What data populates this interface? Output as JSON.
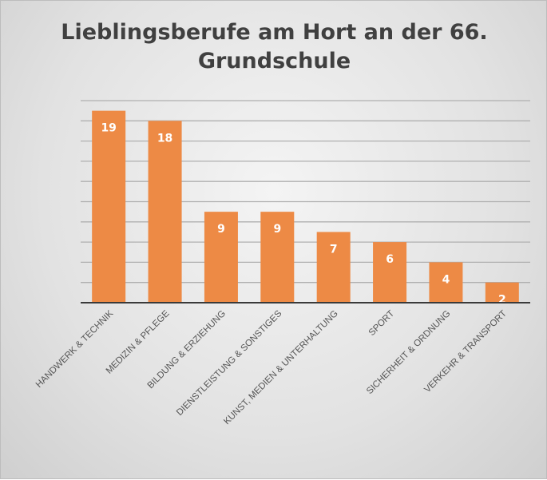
{
  "chart_data": {
    "type": "bar",
    "title_lines": [
      "Lieblingsberufe am Hort an der 66.",
      "Grundschule"
    ],
    "categories": [
      "HANDWERK & TECHNIK",
      "MEDIZIN & PFLEGE",
      "BILDUNG & ERZIEHUNG",
      "DIENSTLEISTUNG & SONSTIGES",
      "KUNST,  MEDIEN & UNTERHALTUNG",
      "SPORT",
      "SICHERHEIT & ORDNUNG",
      "VERKEHR & TRANSPORT"
    ],
    "values": [
      19,
      18,
      9,
      9,
      7,
      6,
      4,
      2
    ],
    "xlabel": "",
    "ylabel": "",
    "ylim": [
      0,
      20
    ],
    "grid_step": 2,
    "grid": true,
    "legend": "none",
    "bar_color": "#ed8a45",
    "label_color": "#ffffff"
  }
}
